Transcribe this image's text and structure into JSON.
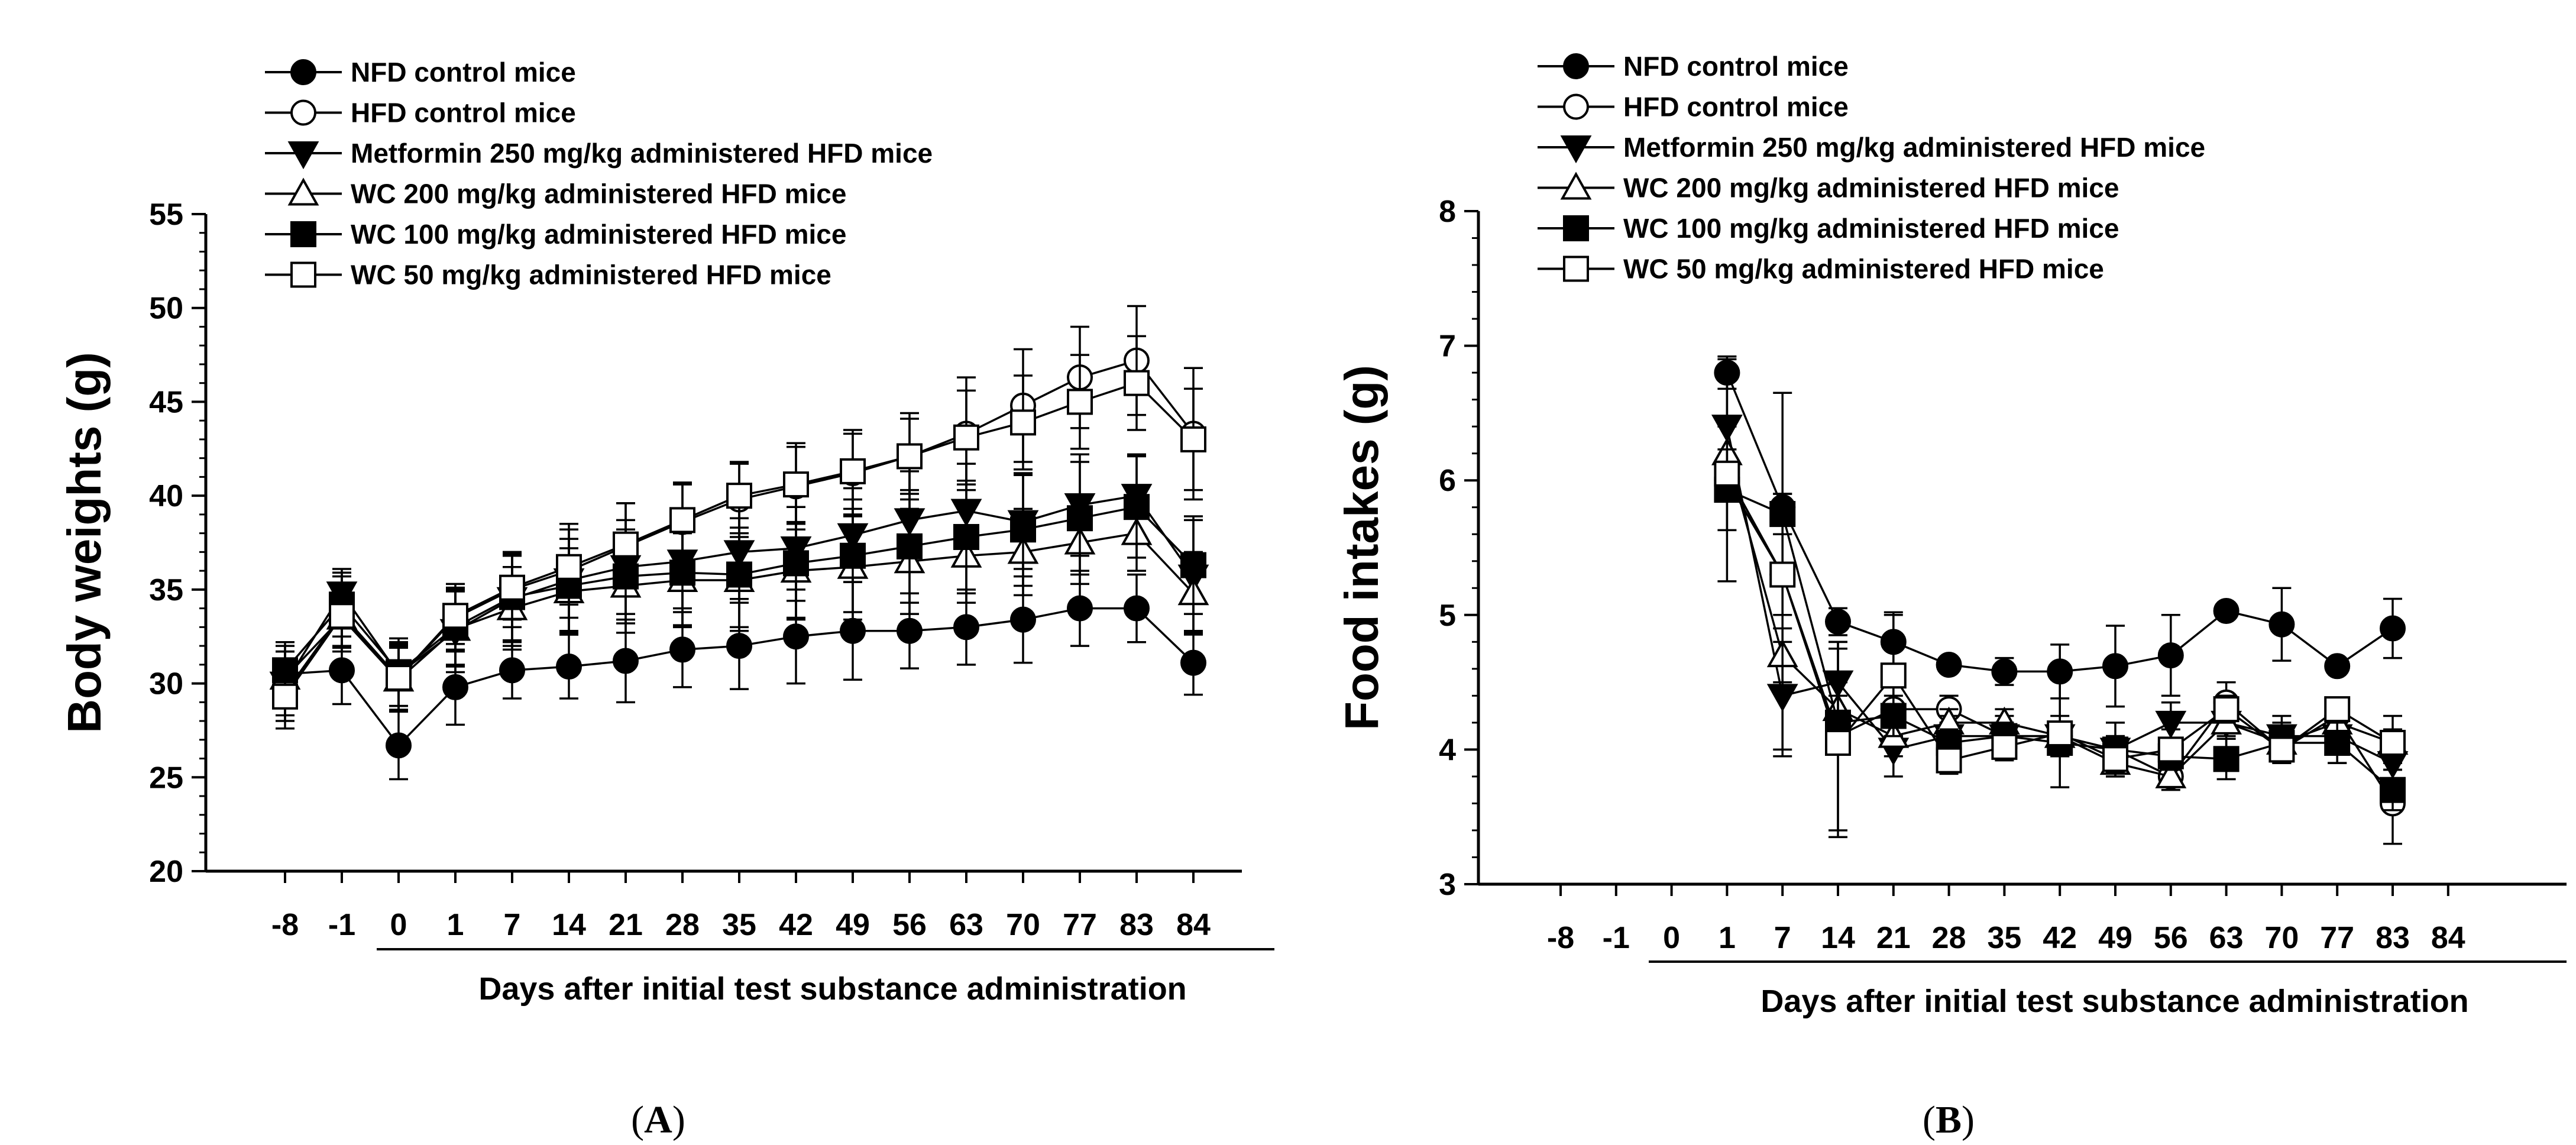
{
  "colors": {
    "ink": "#000000",
    "background": "#ffffff"
  },
  "series_styles": [
    {
      "marker": "circle",
      "fill": "filled"
    },
    {
      "marker": "circle",
      "fill": "open"
    },
    {
      "marker": "triangle-down",
      "fill": "filled"
    },
    {
      "marker": "triangle-up",
      "fill": "open"
    },
    {
      "marker": "square",
      "fill": "filled"
    },
    {
      "marker": "square",
      "fill": "open"
    }
  ],
  "chart_data": [
    {
      "type": "line",
      "panel_label": "A",
      "panel_label_prefix": "(",
      "panel_label_suffix": ")",
      "xlabel": "Days after initial test substance administration",
      "ylabel": "Body weights (g)",
      "categories": [
        "-8",
        "-1",
        "0",
        "1",
        "7",
        "14",
        "21",
        "28",
        "35",
        "42",
        "49",
        "56",
        "63",
        "70",
        "77",
        "83",
        "84"
      ],
      "ylim": [
        20,
        55
      ],
      "yticks": [
        20,
        25,
        30,
        35,
        40,
        45,
        50,
        55
      ],
      "legend_position": "top-left",
      "series": [
        {
          "name": "NFD control mice",
          "values": [
            30.5,
            30.7,
            26.7,
            29.8,
            30.7,
            30.9,
            31.2,
            31.8,
            32.0,
            32.5,
            32.8,
            32.8,
            33.0,
            33.4,
            34.0,
            34.0,
            31.1
          ],
          "errors": [
            1.5,
            1.8,
            1.8,
            2.0,
            1.5,
            1.7,
            2.2,
            2.0,
            2.3,
            2.5,
            2.6,
            2.0,
            2.0,
            2.3,
            2.0,
            1.8,
            1.7
          ]
        },
        {
          "name": "HFD control mice",
          "values": [
            29.5,
            33.7,
            30.3,
            33.5,
            35.0,
            36.0,
            37.3,
            38.6,
            39.8,
            40.5,
            41.2,
            42.1,
            43.3,
            44.8,
            46.3,
            47.2,
            43.3
          ],
          "errors": [
            1.5,
            2.0,
            1.8,
            1.8,
            2.0,
            2.5,
            2.3,
            2.0,
            2.0,
            2.3,
            2.3,
            2.3,
            3.0,
            3.0,
            2.7,
            2.9,
            3.5
          ]
        },
        {
          "name": "Metformin 250 mg/kg administered HFD mice",
          "values": [
            30.0,
            34.8,
            30.5,
            32.8,
            34.5,
            35.5,
            36.2,
            36.5,
            37.0,
            37.2,
            37.9,
            38.7,
            39.2,
            38.6,
            39.5,
            40.0,
            35.7
          ],
          "errors": [
            1.7,
            1.3,
            1.7,
            2.2,
            2.5,
            2.7,
            2.5,
            2.5,
            2.5,
            2.8,
            2.5,
            2.6,
            2.5,
            2.5,
            2.7,
            2.2,
            3.0
          ]
        },
        {
          "name": "WC 200 mg/kg administered HFD mice",
          "values": [
            30.3,
            33.5,
            30.2,
            32.9,
            34.0,
            34.9,
            35.2,
            35.5,
            35.5,
            36.0,
            36.2,
            36.5,
            36.8,
            37.0,
            37.5,
            38.0,
            34.8
          ],
          "errors": [
            1.4,
            1.5,
            1.7,
            2.0,
            2.2,
            2.3,
            2.5,
            2.5,
            2.5,
            2.5,
            2.8,
            2.8,
            2.5,
            2.3,
            2.2,
            2.0,
            2.2
          ]
        },
        {
          "name": "WC 100 mg/kg administered HFD mice",
          "values": [
            30.7,
            34.2,
            30.6,
            33.0,
            34.6,
            35.2,
            35.7,
            35.9,
            35.8,
            36.4,
            36.8,
            37.3,
            37.8,
            38.2,
            38.8,
            39.4,
            36.3
          ],
          "errors": [
            1.5,
            1.7,
            1.8,
            2.0,
            2.3,
            2.5,
            2.5,
            2.8,
            3.0,
            3.0,
            3.0,
            3.0,
            3.0,
            3.0,
            3.0,
            2.7,
            2.6
          ]
        },
        {
          "name": "WC 50 mg/kg administered HFD mice",
          "values": [
            29.3,
            33.6,
            30.3,
            33.6,
            35.1,
            36.2,
            37.4,
            38.7,
            40.0,
            40.6,
            41.3,
            42.1,
            43.1,
            43.9,
            45.0,
            46.0,
            43.0
          ],
          "errors": [
            1.7,
            1.7,
            1.7,
            1.5,
            1.7,
            2.0,
            2.2,
            2.0,
            1.7,
            2.0,
            2.0,
            2.0,
            2.5,
            2.5,
            2.5,
            2.5,
            2.7
          ]
        }
      ]
    },
    {
      "type": "line",
      "panel_label": "B",
      "panel_label_prefix": "(",
      "panel_label_suffix": ")",
      "xlabel": "Days after initial test substance administration",
      "ylabel": "Food intakes (g)",
      "categories": [
        "-8",
        "-1",
        "0",
        "1",
        "7",
        "14",
        "21",
        "28",
        "35",
        "42",
        "49",
        "56",
        "63",
        "70",
        "77",
        "83",
        "84"
      ],
      "data_start_index": 3,
      "data_end_index": 15,
      "ylim": [
        3,
        8
      ],
      "yticks": [
        3,
        4,
        5,
        6,
        7,
        8
      ],
      "legend_position": "top-left",
      "series": [
        {
          "name": "NFD control mice",
          "values": [
            null,
            null,
            null,
            6.8,
            5.8,
            4.95,
            4.8,
            4.63,
            4.58,
            4.58,
            4.62,
            4.7,
            5.03,
            4.93,
            4.62,
            4.9,
            null
          ],
          "errors": [
            null,
            null,
            null,
            0.12,
            0.1,
            0.1,
            0.22,
            0.05,
            0.1,
            0.2,
            0.3,
            0.3,
            0.05,
            0.27,
            0.02,
            0.22,
            null
          ]
        },
        {
          "name": "HFD control mice",
          "values": [
            null,
            null,
            null,
            6.0,
            5.3,
            4.1,
            4.3,
            4.3,
            4.1,
            4.1,
            4.0,
            3.8,
            4.35,
            4.0,
            4.25,
            3.6,
            null
          ],
          "errors": [
            null,
            null,
            null,
            0.15,
            0.3,
            0.7,
            0.2,
            0.1,
            0.1,
            0.15,
            0.1,
            0.05,
            0.15,
            0.1,
            0.1,
            0.3,
            null
          ]
        },
        {
          "name": "Metformin 250 mg/kg administered HFD mice",
          "values": [
            null,
            null,
            null,
            6.4,
            4.4,
            4.5,
            4.0,
            4.1,
            4.1,
            4.1,
            4.0,
            4.2,
            4.2,
            4.1,
            4.1,
            3.9,
            null
          ],
          "errors": [
            null,
            null,
            null,
            0.5,
            0.4,
            0.3,
            0.2,
            0.15,
            0.15,
            0.1,
            0.2,
            0.15,
            0.2,
            0.15,
            0.2,
            0.2,
            null
          ]
        },
        {
          "name": "WC 200 mg/kg administered HFD mice",
          "values": [
            null,
            null,
            null,
            6.2,
            4.7,
            4.3,
            4.1,
            4.2,
            4.2,
            4.1,
            3.9,
            3.8,
            4.2,
            4.05,
            4.2,
            4.05,
            null
          ],
          "errors": [
            null,
            null,
            null,
            0.2,
            0.2,
            0.2,
            0.15,
            0.1,
            0.1,
            0.1,
            0.1,
            0.1,
            0.1,
            0.1,
            0.1,
            0.1,
            null
          ]
        },
        {
          "name": "WC 100 mg/kg administered HFD mice",
          "values": [
            null,
            null,
            null,
            5.93,
            5.75,
            4.2,
            4.25,
            4.05,
            4.1,
            4.05,
            4.0,
            3.95,
            3.93,
            4.05,
            4.05,
            3.7,
            null
          ],
          "errors": [
            null,
            null,
            null,
            0.3,
            0.15,
            0.2,
            0.15,
            0.1,
            0.1,
            0.1,
            0.1,
            0.1,
            0.15,
            0.15,
            0.15,
            0.15,
            null
          ]
        },
        {
          "name": "WC 50 mg/kg administered HFD mice",
          "values": [
            null,
            null,
            null,
            6.05,
            5.3,
            4.05,
            4.55,
            3.92,
            4.02,
            4.12,
            3.93,
            4.0,
            4.3,
            4.0,
            4.3,
            4.05,
            null
          ],
          "errors": [
            null,
            null,
            null,
            0.8,
            1.35,
            0.7,
            0.45,
            0.1,
            0.1,
            0.4,
            0.1,
            0.15,
            0.1,
            0.1,
            0.05,
            0.2,
            null
          ]
        }
      ]
    }
  ]
}
